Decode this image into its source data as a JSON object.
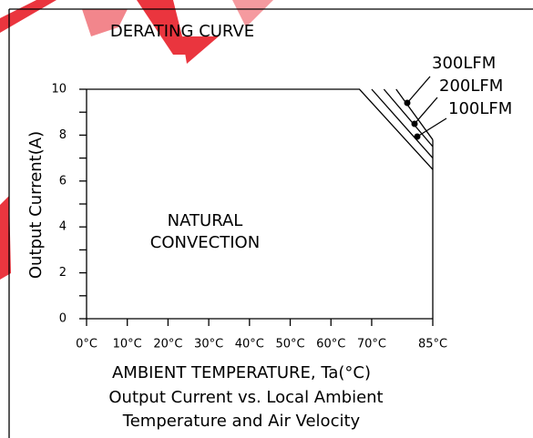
{
  "chart_data": {
    "type": "line",
    "title": "DERATING CURVE",
    "xlabel": "AMBIENT TEMPERATURE, Ta(°C)",
    "ylabel": "Output Current(A)",
    "caption": [
      "Output Current vs. Local Ambient",
      "Temperature and Air Velocity"
    ],
    "xlim": [
      0,
      85
    ],
    "ylim": [
      0,
      10
    ],
    "xticks": [
      {
        "value": 0,
        "label": "0°C"
      },
      {
        "value": 10,
        "label": "10°C"
      },
      {
        "value": 20,
        "label": "20°C"
      },
      {
        "value": 30,
        "label": "30°C"
      },
      {
        "value": 40,
        "label": "40°C"
      },
      {
        "value": 50,
        "label": "50°C"
      },
      {
        "value": 60,
        "label": "60°C"
      },
      {
        "value": 70,
        "label": "70°C"
      },
      {
        "value": 85,
        "label": "85°C"
      }
    ],
    "yticks": [
      0,
      2,
      4,
      6,
      8,
      10
    ],
    "yminor": [
      1,
      3,
      5,
      7,
      9
    ],
    "series": [
      {
        "name": "NATURAL CONVECTION",
        "color": "#000000",
        "x": [
          0,
          67,
          85
        ],
        "values": [
          10,
          10,
          6.5
        ]
      },
      {
        "name": "100LFM",
        "color": "#000000",
        "x": [
          70,
          85
        ],
        "values": [
          10,
          7.0
        ]
      },
      {
        "name": "200LFM",
        "color": "#000000",
        "x": [
          73,
          85
        ],
        "values": [
          10,
          7.5
        ]
      },
      {
        "name": "300LFM",
        "color": "#000000",
        "x": [
          76,
          85
        ],
        "values": [
          10,
          7.8
        ]
      }
    ]
  }
}
